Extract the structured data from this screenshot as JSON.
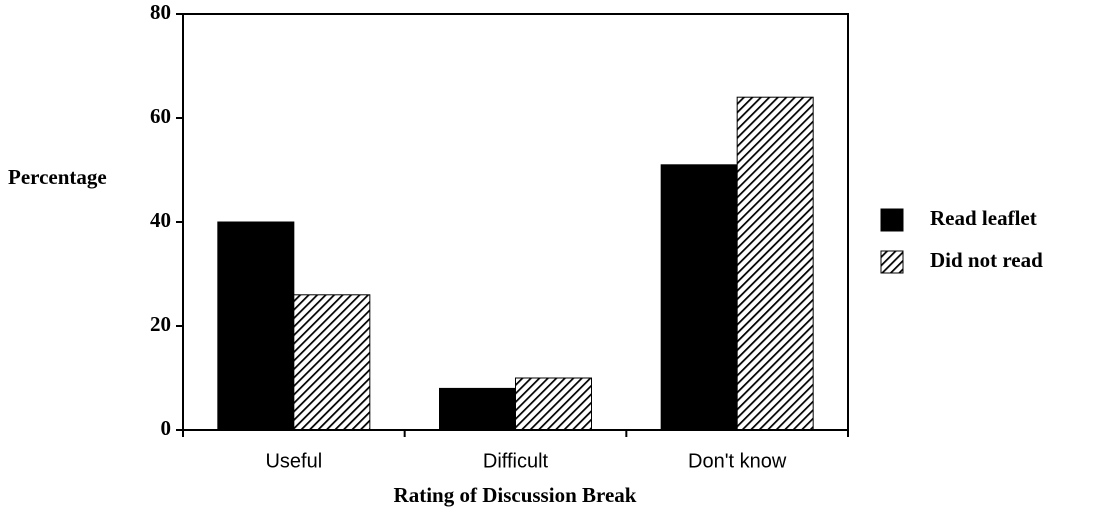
{
  "chart_data": {
    "type": "bar",
    "xlabel": "Rating of Discussion Break",
    "ylabel": "Percentage",
    "categories": [
      "Useful",
      "Difficult",
      "Don't know"
    ],
    "series": [
      {
        "name": "Read leaflet",
        "color": "#000000",
        "pattern": "solid",
        "values": [
          40,
          8,
          51
        ]
      },
      {
        "name": "Did not read",
        "color": "#000000",
        "pattern": "hatch",
        "values": [
          26,
          10,
          64
        ]
      }
    ],
    "ylim": [
      0,
      80
    ],
    "yticks": [
      0,
      20,
      40,
      60,
      80
    ],
    "legend": "right"
  }
}
